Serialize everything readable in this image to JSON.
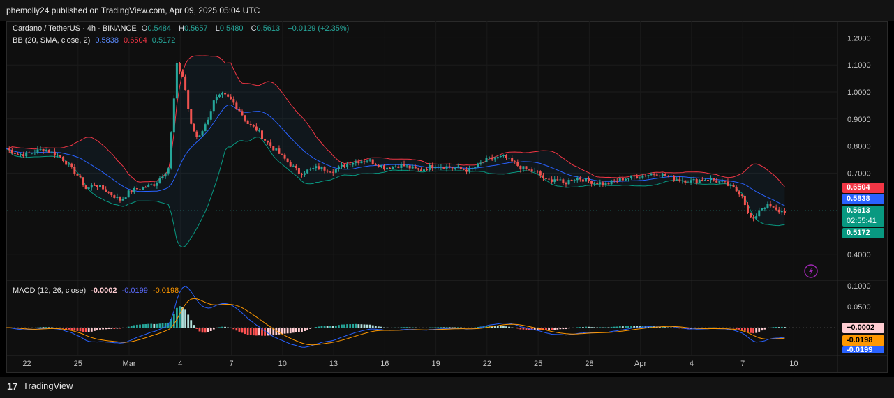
{
  "header": {
    "published": "phemolly24 published on TradingView.com, Apr 09, 2025 05:04 UTC"
  },
  "footer": {
    "brand": "TradingView",
    "logo_glyph": "17"
  },
  "legend": {
    "symbol": "Cardano / TetherUS · 4h · BINANCE",
    "o_label": "O",
    "o": "0.5484",
    "h_label": "H",
    "h": "0.5657",
    "l_label": "L",
    "l": "0.5480",
    "c_label": "C",
    "c": "0.5613",
    "change": "+0.0129 (+2.35%)",
    "bb_label": "BB (20, SMA, close, 2)",
    "bb_basis": "0.5838",
    "bb_upper": "0.6504",
    "bb_lower": "0.5172",
    "macd_label": "MACD (12, 26, close)",
    "macd_hist": "-0.0002",
    "macd_line": "-0.0199",
    "macd_signal": "-0.0198"
  },
  "price_tags": {
    "upper": "0.6504",
    "basis": "0.5838",
    "last": "0.5613",
    "countdown": "02:55:41",
    "lower": "0.5172",
    "macd_hist": "−0.0002",
    "macd_signal": "-0.0198",
    "macd_line": "-0.0199"
  },
  "colors": {
    "up": "#26a69a",
    "down": "#ef5350",
    "basis": "#2962ff",
    "upper": "#f23645",
    "lower": "#089981",
    "signal": "#ff9800",
    "macd": "#2962ff"
  },
  "chart_data": [
    {
      "type": "candlestick",
      "title": "Cardano / TetherUS · 4h · BINANCE",
      "y_ticks": [
        "1.2000",
        "1.1000",
        "1.0000",
        "0.9000",
        "0.8000",
        "0.7000",
        "0.4000"
      ],
      "ylim": [
        0.35,
        1.25
      ],
      "x_ticks": [
        "22",
        "25",
        "Mar",
        "4",
        "7",
        "10",
        "13",
        "16",
        "19",
        "22",
        "25",
        "28",
        "Apr",
        "4",
        "7",
        "10"
      ],
      "x_tick_days": [
        0,
        3,
        6,
        9,
        12,
        15,
        18,
        21,
        24,
        27,
        30,
        33,
        36,
        39,
        42,
        45
      ],
      "close_path": {
        "t": [
          -1.2,
          -0.5,
          0,
          1,
          2,
          3,
          3.5,
          4,
          4.5,
          5,
          5.5,
          6,
          6.4,
          7,
          7.5,
          8.3,
          8.8,
          9.2,
          9.6,
          10,
          10.5,
          11,
          11.5,
          12,
          12.5,
          13,
          13.5,
          14,
          14.5,
          15,
          15.5,
          16,
          17,
          18,
          19,
          20,
          21,
          22,
          23,
          24,
          25,
          26,
          27,
          28,
          29,
          30,
          30.5,
          31,
          31.5,
          32,
          32.5,
          33,
          34,
          35,
          36,
          37,
          38,
          39,
          40,
          41,
          42,
          42.3,
          42.6,
          43,
          43.5,
          44,
          44.6
        ],
        "price": [
          0.79,
          0.77,
          0.77,
          0.79,
          0.76,
          0.69,
          0.64,
          0.66,
          0.64,
          0.62,
          0.6,
          0.63,
          0.64,
          0.65,
          0.66,
          0.72,
          1.1,
          1.05,
          0.88,
          0.83,
          0.88,
          0.97,
          0.99,
          0.97,
          0.93,
          0.88,
          0.86,
          0.82,
          0.79,
          0.76,
          0.73,
          0.7,
          0.72,
          0.71,
          0.74,
          0.75,
          0.72,
          0.73,
          0.71,
          0.73,
          0.72,
          0.71,
          0.75,
          0.76,
          0.72,
          0.7,
          0.67,
          0.68,
          0.66,
          0.68,
          0.68,
          0.67,
          0.66,
          0.68,
          0.69,
          0.7,
          0.68,
          0.67,
          0.68,
          0.66,
          0.62,
          0.55,
          0.52,
          0.57,
          0.58,
          0.56,
          0.56
        ]
      },
      "last": {
        "open": 0.5484,
        "high": 0.5657,
        "low": 0.548,
        "close": 0.5613,
        "change": 0.0129,
        "change_pct": 2.35
      },
      "indicators": {
        "bollinger": {
          "length": 20,
          "mult": 2,
          "basis": 0.5838,
          "upper": 0.6504,
          "lower": 0.5172
        },
        "macd": {
          "fast": 12,
          "slow": 26,
          "histogram": -0.0002,
          "macd": -0.0199,
          "signal": -0.0198,
          "y_ticks": [
            "0.1000",
            "0.0500"
          ],
          "ylim": [
            -0.06,
            0.11
          ]
        }
      }
    }
  ]
}
